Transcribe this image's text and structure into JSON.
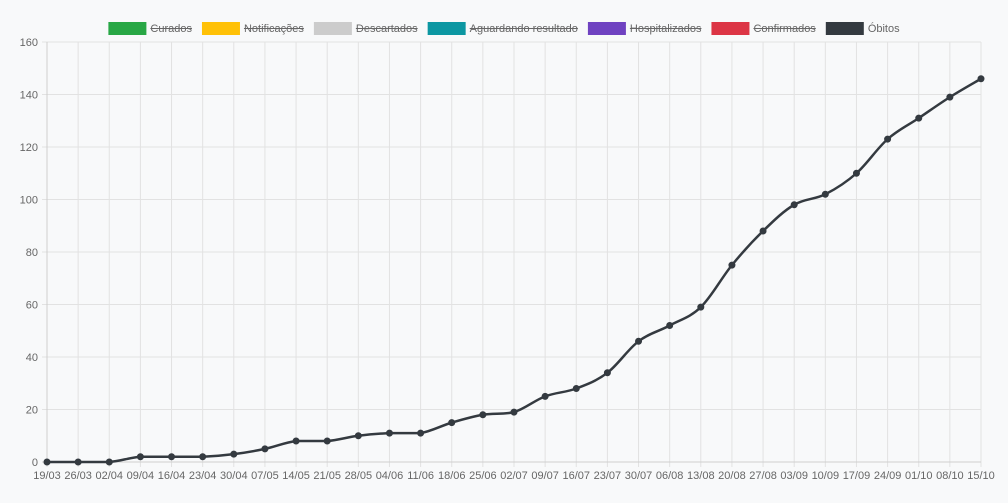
{
  "chart_data": {
    "type": "line",
    "categories": [
      "19/03",
      "26/03",
      "02/04",
      "09/04",
      "16/04",
      "23/04",
      "30/04",
      "07/05",
      "14/05",
      "21/05",
      "28/05",
      "04/06",
      "11/06",
      "18/06",
      "25/06",
      "02/07",
      "09/07",
      "16/07",
      "23/07",
      "30/07",
      "06/08",
      "13/08",
      "20/08",
      "27/08",
      "03/09",
      "10/09",
      "17/09",
      "24/09",
      "01/10",
      "08/10",
      "15/10"
    ],
    "legend": [
      {
        "label": "Curados",
        "color": "#28a745",
        "hidden": true
      },
      {
        "label": "Notificações",
        "color": "#ffc107",
        "hidden": true
      },
      {
        "label": "Descartados",
        "color": "#cccccc",
        "hidden": true
      },
      {
        "label": "Aguardando resultado",
        "color": "#0c97a2",
        "hidden": true
      },
      {
        "label": "Hospitalizados",
        "color": "#6f42c1",
        "hidden": true
      },
      {
        "label": "Confirmados",
        "color": "#dc3545",
        "hidden": true
      },
      {
        "label": "Óbitos",
        "color": "#343a40",
        "hidden": false
      }
    ],
    "series": [
      {
        "name": "Óbitos",
        "color": "#343a40",
        "values": [
          0,
          0,
          0,
          2,
          2,
          2,
          3,
          5,
          8,
          8,
          10,
          11,
          11,
          15,
          18,
          19,
          25,
          28,
          34,
          46,
          52,
          59,
          75,
          88,
          98,
          102,
          110,
          123,
          131,
          139,
          146
        ]
      }
    ],
    "ylim": [
      0,
      160
    ],
    "yticks": [
      0,
      20,
      40,
      60,
      80,
      100,
      120,
      140,
      160
    ],
    "grid": true,
    "legend_position": "top-center"
  }
}
